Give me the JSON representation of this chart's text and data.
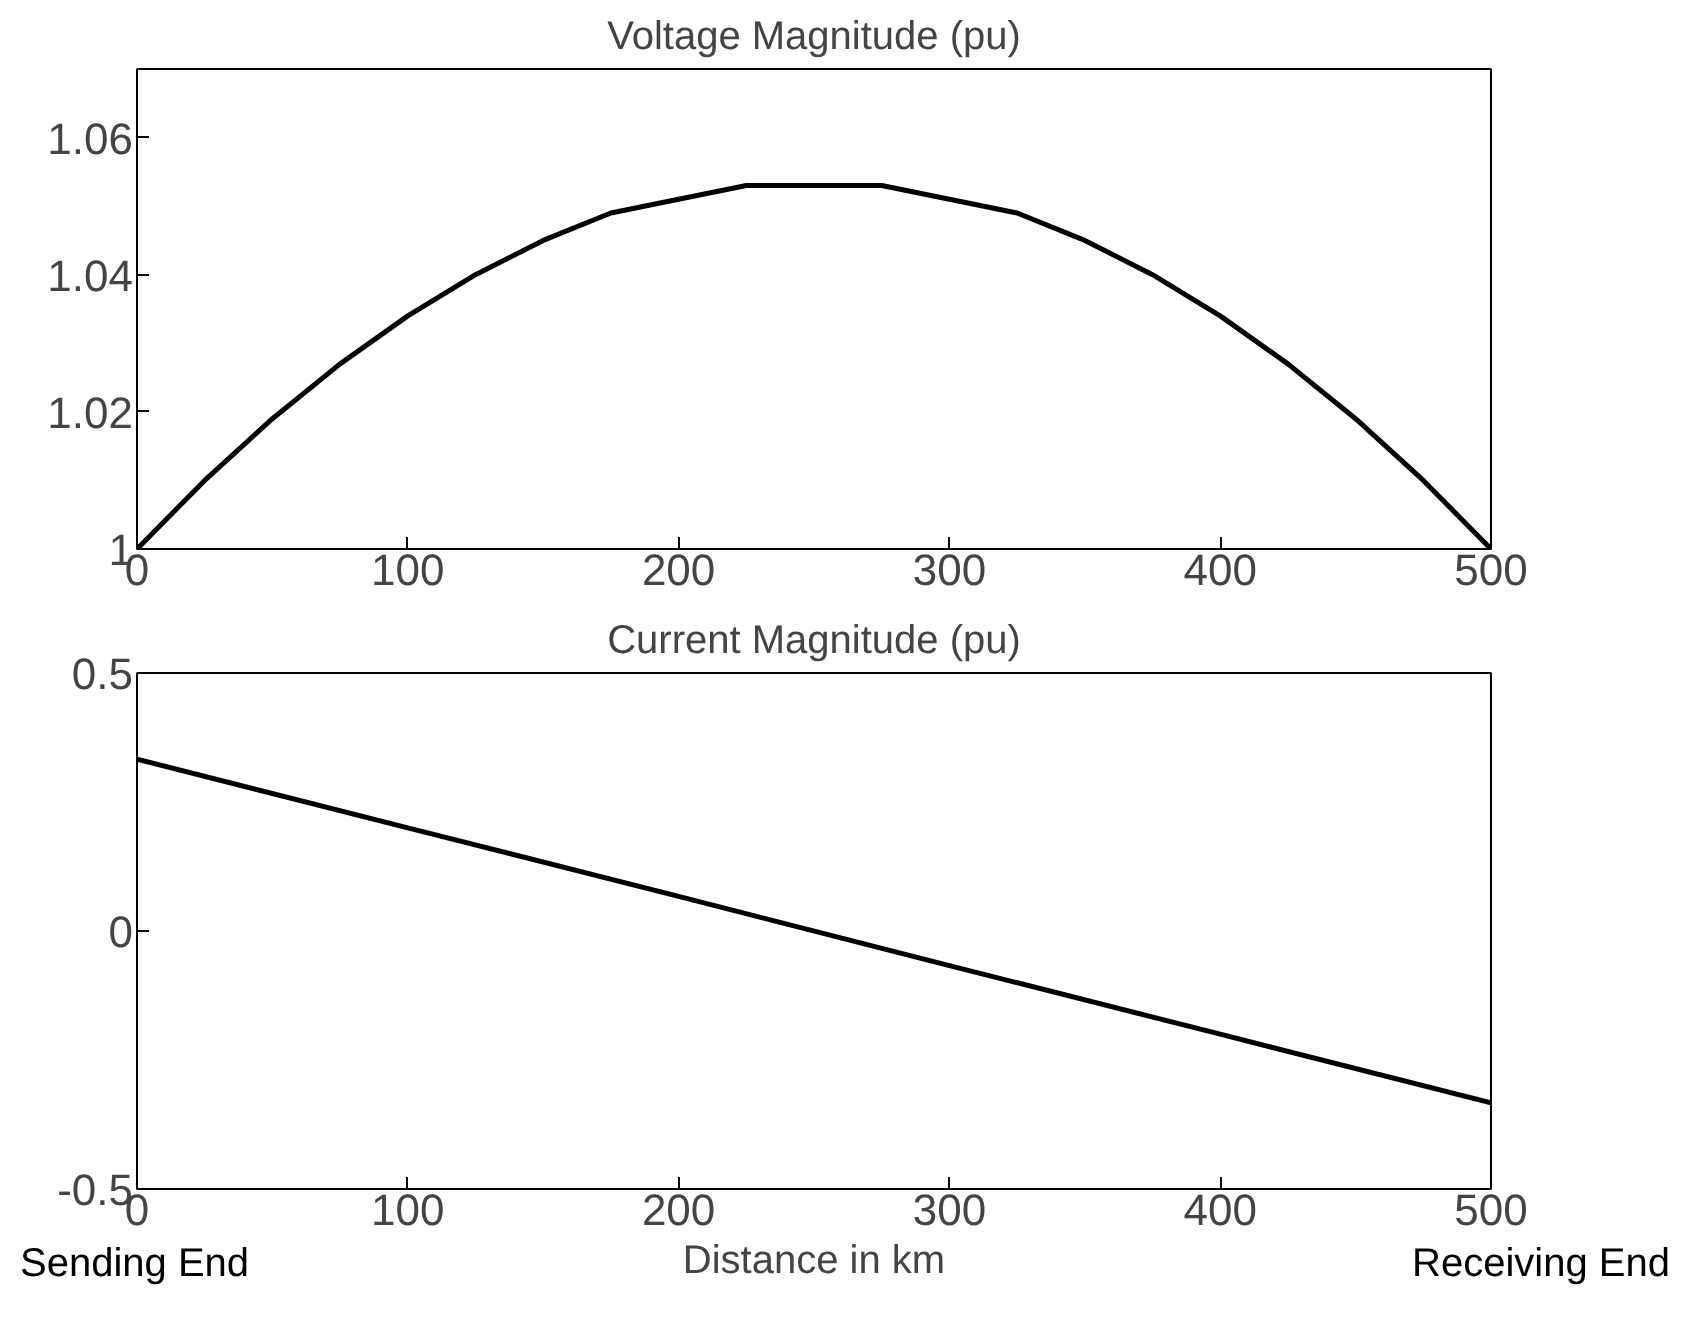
{
  "chart_data": [
    {
      "type": "line",
      "title": "Voltage Magnitude (pu)",
      "x": [
        0,
        25,
        50,
        75,
        100,
        125,
        150,
        175,
        200,
        225,
        250,
        275,
        300,
        325,
        350,
        375,
        400,
        425,
        450,
        475,
        500
      ],
      "series": [
        {
          "color": "#000000",
          "values": [
            1.0,
            1.01,
            1.019,
            1.027,
            1.034,
            1.04,
            1.045,
            1.049,
            1.051,
            1.053,
            1.053,
            1.053,
            1.051,
            1.049,
            1.045,
            1.04,
            1.034,
            1.027,
            1.019,
            1.01,
            1.0
          ]
        }
      ],
      "xlim": [
        0,
        500
      ],
      "xticks": [
        0,
        100,
        200,
        300,
        400,
        500
      ],
      "ylim": [
        1,
        1.07
      ],
      "yticks": [
        1,
        1.02,
        1.04,
        1.06
      ],
      "grid": false
    },
    {
      "type": "line",
      "title": "Current Magnitude (pu)",
      "xlabel": "Distance in km",
      "x": [
        0,
        100,
        200,
        300,
        400,
        500
      ],
      "series": [
        {
          "color": "#000000",
          "values": [
            0.333,
            0.2,
            0.067,
            -0.067,
            -0.2,
            -0.333
          ]
        }
      ],
      "xlim": [
        0,
        500
      ],
      "xticks": [
        0,
        100,
        200,
        300,
        400,
        500
      ],
      "ylim": [
        -0.5,
        0.5
      ],
      "yticks": [
        -0.5,
        0,
        0.5
      ],
      "grid": false,
      "annotations": [
        "Sending End",
        "Receiving End"
      ]
    }
  ]
}
